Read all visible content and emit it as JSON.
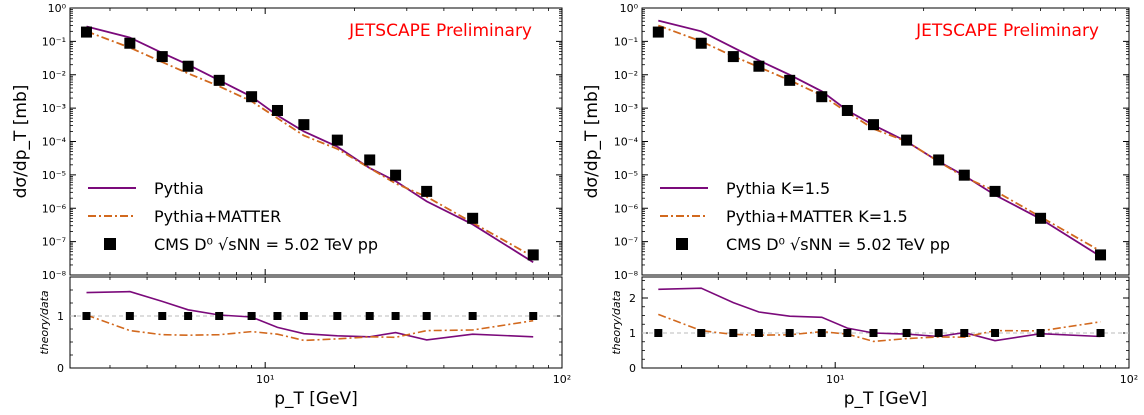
{
  "chart_data": [
    {
      "type": "line",
      "annotation": "JETSCAPE Preliminary",
      "annotation_color": "#ff0000",
      "xlabel": "p_T [GeV]",
      "ylabel_main": "dσ/dp_T [mb]",
      "ylabel_ratio": "theory/data",
      "xscale": "log",
      "xlim": [
        2.2,
        100
      ],
      "ylim_main": [
        1e-08,
        1
      ],
      "ylim_ratio": [
        0,
        1.75
      ],
      "ratio_yticks": [
        0,
        1
      ],
      "legend_position": "bottom-left",
      "series": [
        {
          "name": "Pythia",
          "style": "solid",
          "color": "#7b0a7b",
          "x": [
            2.5,
            3.5,
            4.5,
            5.5,
            7,
            9,
            11,
            13.5,
            17.5,
            22.5,
            27.5,
            35,
            50,
            80
          ],
          "y": [
            0.28,
            0.13,
            0.045,
            0.02,
            0.0068,
            0.0022,
            0.0006,
            0.0002,
            7e-05,
            1.6e-05,
            6.5e-06,
            1.6e-06,
            3.3e-07,
            2.4e-08
          ],
          "ratio": [
            1.45,
            1.47,
            1.28,
            1.12,
            1.02,
            0.98,
            0.78,
            0.66,
            0.62,
            0.6,
            0.68,
            0.54,
            0.65,
            0.6
          ]
        },
        {
          "name": "Pythia+MATTER",
          "style": "dashdot",
          "color": "#d2691e",
          "x": [
            2.5,
            3.5,
            4.5,
            5.5,
            7,
            9,
            11,
            13.5,
            17.5,
            22.5,
            27.5,
            35,
            50,
            80
          ],
          "y": [
            0.2,
            0.065,
            0.024,
            0.011,
            0.0045,
            0.0016,
            0.0005,
            0.00015,
            6e-05,
            1.6e-05,
            5.5e-06,
            2.2e-06,
            3.7e-07,
            3.5e-08
          ],
          "ratio": [
            1.02,
            0.72,
            0.64,
            0.63,
            0.64,
            0.7,
            0.65,
            0.53,
            0.56,
            0.6,
            0.59,
            0.72,
            0.73,
            0.91
          ]
        },
        {
          "name": "CMS D⁰ √sNN = 5.02 TeV pp",
          "style": "marker",
          "color": "#000000",
          "x": [
            2.5,
            3.5,
            4.5,
            5.5,
            7,
            9,
            11,
            13.5,
            17.5,
            22.5,
            27.5,
            35,
            50,
            80
          ],
          "y": [
            0.19,
            0.088,
            0.035,
            0.018,
            0.0068,
            0.0022,
            0.00085,
            0.00032,
            0.00011,
            2.8e-05,
            9.8e-06,
            3.2e-06,
            5e-07,
            4e-08
          ]
        }
      ]
    },
    {
      "type": "line",
      "annotation": "JETSCAPE Preliminary",
      "annotation_color": "#ff0000",
      "xlabel": "p_T [GeV]",
      "ylabel_main": "dσ/dp_T [mb]",
      "ylabel_ratio": "theory/data",
      "xscale": "log",
      "xlim": [
        2.2,
        100
      ],
      "ylim_main": [
        1e-08,
        1
      ],
      "ylim_ratio": [
        0,
        2.6
      ],
      "ratio_yticks": [
        0,
        1,
        2
      ],
      "legend_position": "bottom-left",
      "series": [
        {
          "name": "Pythia K=1.5",
          "style": "solid",
          "color": "#7b0a7b",
          "x": [
            2.5,
            3.5,
            4.5,
            5.5,
            7,
            9,
            11,
            13.5,
            17.5,
            22.5,
            27.5,
            35,
            50,
            80
          ],
          "y": [
            0.42,
            0.2,
            0.065,
            0.027,
            0.01,
            0.0032,
            0.00085,
            0.00031,
            0.0001,
            2.5e-05,
            9.5e-06,
            2.5e-06,
            4.8e-07,
            3.6e-08
          ],
          "ratio": [
            2.25,
            2.28,
            1.87,
            1.6,
            1.48,
            1.45,
            1.14,
            1.0,
            0.97,
            0.9,
            1.01,
            0.78,
            0.98,
            0.9
          ]
        },
        {
          "name": "Pythia+MATTER K=1.5",
          "style": "dashdot",
          "color": "#d2691e",
          "x": [
            2.5,
            3.5,
            4.5,
            5.5,
            7,
            9,
            11,
            13.5,
            17.5,
            22.5,
            27.5,
            35,
            50,
            80
          ],
          "y": [
            0.3,
            0.1,
            0.036,
            0.017,
            0.0068,
            0.0024,
            0.00075,
            0.00024,
            0.0001,
            2.5e-05,
            8.5e-06,
            3.3e-06,
            5.5e-07,
            5.2e-08
          ],
          "ratio": [
            1.53,
            1.07,
            0.96,
            0.94,
            0.95,
            1.04,
            0.97,
            0.76,
            0.84,
            0.89,
            0.88,
            1.07,
            1.06,
            1.32
          ]
        },
        {
          "name": "CMS D⁰ √sNN = 5.02 TeV pp",
          "style": "marker",
          "color": "#000000",
          "x": [
            2.5,
            3.5,
            4.5,
            5.5,
            7,
            9,
            11,
            13.5,
            17.5,
            22.5,
            27.5,
            35,
            50,
            80
          ],
          "y": [
            0.19,
            0.088,
            0.035,
            0.018,
            0.0068,
            0.0022,
            0.00085,
            0.00032,
            0.00011,
            2.8e-05,
            9.8e-06,
            3.2e-06,
            5e-07,
            4e-08
          ]
        }
      ]
    }
  ]
}
